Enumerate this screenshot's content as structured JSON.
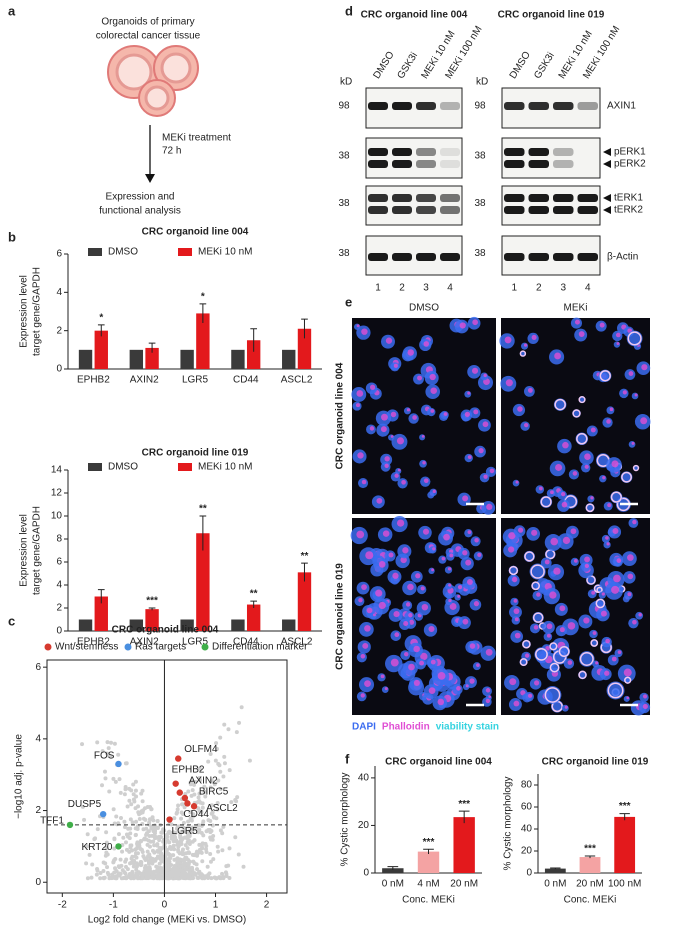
{
  "panel_labels": [
    "a",
    "b",
    "c",
    "d",
    "e",
    "f"
  ],
  "diagram": {
    "source": [
      "Organoids of primary",
      "colorectal cancer tissue"
    ],
    "treatment": [
      "MEKi treatment",
      "72 h"
    ],
    "outcome": [
      "Expression and",
      "functional analysis"
    ]
  },
  "chart_data": [
    {
      "type": "bar",
      "title": "CRC organoid line 004",
      "ylabel": [
        "Expression level",
        "target gene/GAPDH"
      ],
      "categories": [
        "EPHB2",
        "AXIN2",
        "LGR5",
        "CD44",
        "ASCL2"
      ],
      "series": [
        {
          "name": "DMSO",
          "color": "#3a3a3a",
          "values": [
            1,
            1,
            1,
            1,
            1
          ]
        },
        {
          "name": "MEKi 10 nM",
          "color": "#e3191c",
          "values": [
            2.0,
            1.1,
            2.9,
            1.5,
            2.1
          ],
          "errors": [
            0.3,
            0.25,
            0.5,
            0.6,
            0.5
          ],
          "significance": [
            "*",
            null,
            "*",
            null,
            null
          ]
        }
      ],
      "ylim": [
        0,
        6
      ],
      "yticks": [
        0,
        2,
        4,
        6
      ],
      "legend": "top"
    },
    {
      "type": "bar",
      "title": "CRC organoid line 019",
      "ylabel": [
        "Expression level",
        "target gene/GAPDH"
      ],
      "categories": [
        "EPHB2",
        "AXIN2",
        "LGR5",
        "CD44",
        "ASCL2"
      ],
      "series": [
        {
          "name": "DMSO",
          "color": "#3a3a3a",
          "values": [
            1,
            1,
            1,
            1,
            1
          ]
        },
        {
          "name": "MEKi 10 nM",
          "color": "#e3191c",
          "values": [
            3.0,
            1.9,
            8.5,
            2.3,
            5.1
          ],
          "errors": [
            0.6,
            0.1,
            1.5,
            0.3,
            0.8
          ],
          "significance": [
            null,
            "***",
            "**",
            "**",
            "**"
          ]
        }
      ],
      "ylim": [
        0,
        14
      ],
      "yticks": [
        0,
        2,
        4,
        6,
        8,
        10,
        12,
        14
      ],
      "legend": "top"
    },
    {
      "type": "scatter",
      "title": "CRC organoid line 004",
      "xlabel": "Log2 fold change (MEKi vs. DMSO)",
      "ylabel": "−log10 adj. p-value",
      "series": [
        {
          "name": "Wnt/stemness",
          "color": "#d63a2f",
          "x": [
            0.27,
            0.22,
            0.3,
            0.4,
            0.45,
            0.58,
            0.1
          ],
          "values": [
            3.45,
            2.75,
            2.5,
            2.35,
            2.2,
            2.12,
            1.75
          ],
          "labels": [
            "OLFM4",
            "EPHB2",
            "AXIN2",
            "BIRC5",
            "CD44",
            "ASCL2",
            "LGR5"
          ]
        },
        {
          "name": "Ras targets",
          "color": "#4a8fe0",
          "x": [
            -0.9,
            -1.2
          ],
          "values": [
            3.3,
            1.9
          ],
          "labels": [
            "FOS",
            "DUSP5"
          ]
        },
        {
          "name": "Differentiation marker",
          "color": "#3fae49",
          "x": [
            -1.85,
            -0.9
          ],
          "values": [
            1.6,
            1.0
          ],
          "labels": [
            "TFF1",
            "KRT20"
          ]
        }
      ],
      "threshold": 1.6,
      "xlim": [
        -2.3,
        2.4
      ],
      "xticks": [
        -2,
        -1,
        0,
        1,
        2
      ],
      "ylim": [
        -0.3,
        6.2
      ],
      "yticks": [
        0,
        2,
        4,
        6
      ],
      "legend": "top"
    },
    {
      "type": "bar",
      "title": "CRC organoid line 004",
      "ylabel": "% Cystic morphology",
      "xlabel": "Conc. MEKi",
      "categories": [
        "0 nM",
        "4 nM",
        "20 nM"
      ],
      "values": [
        2,
        9,
        23.5
      ],
      "errors": [
        0.7,
        1,
        2.5
      ],
      "colors": [
        "#3a3a3a",
        "#f4a3a3",
        "#e3191c"
      ],
      "significance": [
        null,
        "***",
        "***"
      ],
      "ylim": [
        0,
        45
      ],
      "yticks": [
        0,
        20,
        40
      ]
    },
    {
      "type": "bar",
      "title": "CRC organoid line 019",
      "ylabel": "% Cystic morphology",
      "xlabel": "Conc. MEKi",
      "categories": [
        "0 nM",
        "20 nM",
        "100 nM"
      ],
      "values": [
        4,
        14.5,
        51
      ],
      "errors": [
        0.5,
        1,
        3
      ],
      "colors": [
        "#3a3a3a",
        "#f4a3a3",
        "#e3191c"
      ],
      "significance": [
        null,
        "***",
        "***"
      ],
      "ylim": [
        0,
        90
      ],
      "yticks": [
        0,
        20,
        40,
        60,
        80
      ]
    }
  ],
  "blot": {
    "panels": [
      "CRC organoid line 004",
      "CRC organoid line 019"
    ],
    "lanes": [
      "DMSO",
      "GSK3i",
      "MEKi 10 nM",
      "MEKi 100 nM"
    ],
    "lane_numbers": [
      1,
      2,
      3,
      4
    ],
    "kd_label": "kD",
    "markers": [
      98,
      38,
      38,
      38
    ],
    "proteins": [
      [
        "AXIN1"
      ],
      [
        "pERK1",
        "pERK2"
      ],
      [
        "tERK1",
        "tERK2"
      ],
      [
        "β-Actin"
      ]
    ]
  },
  "micrographs": {
    "columns": [
      "DMSO",
      "MEKi"
    ],
    "rows": [
      "CRC organoid line 004",
      "CRC organoid line 019"
    ],
    "stains": [
      {
        "name": "DAPI",
        "color": "#3b6cf0"
      },
      {
        "name": "Phalloidin",
        "color": "#e04fd4"
      },
      {
        "name": "viability stain",
        "color": "#36d3e0"
      }
    ]
  }
}
